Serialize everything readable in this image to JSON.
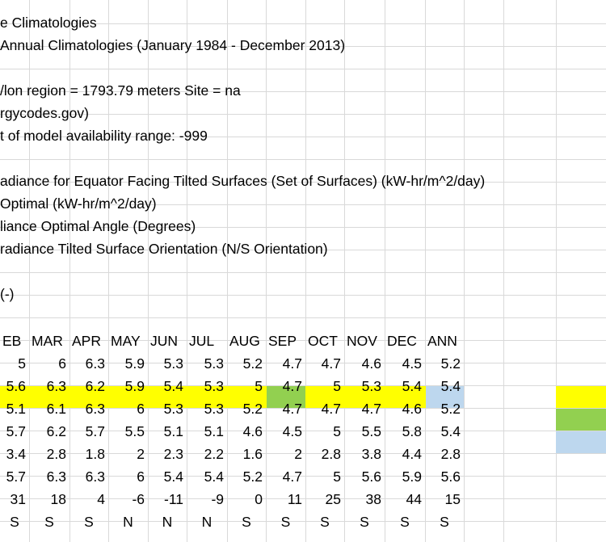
{
  "colors": {
    "highlight_yellow": "#ffff00",
    "highlight_green": "#92d050",
    "highlight_blue": "#bdd7ee",
    "gridline": "#d9d9d9"
  },
  "text_lines": [
    "e Climatologies",
    " Annual Climatologies (January 1984 - December 2013)",
    "",
    "/lon region = 1793.79 meters   Site = na",
    "rgycodes.gov)",
    "t of model availability range: -999",
    "",
    "adiance for Equator Facing Tilted Surfaces (Set of Surfaces) (kW-hr/m^2/day)",
    " Optimal (kW-hr/m^2/day)",
    "liance Optimal Angle (Degrees)",
    "radiance Tilted Surface Orientation (N/S Orientation)",
    "",
    " (-)",
    ""
  ],
  "table": {
    "headers": [
      "EB",
      "MAR",
      "APR",
      "MAY",
      "JUN",
      "JUL",
      "AUG",
      "SEP",
      "OCT",
      "NOV",
      "DEC",
      "ANN"
    ],
    "rows": [
      [
        "5",
        "6",
        "6.3",
        "5.9",
        "5.3",
        "5.3",
        "5.2",
        "4.7",
        "4.7",
        "4.6",
        "4.5",
        "5.2"
      ],
      [
        "5.6",
        "6.3",
        "6.2",
        "5.9",
        "5.4",
        "5.3",
        "5",
        "4.7",
        "5",
        "5.3",
        "5.4",
        "5.4"
      ],
      [
        "5.1",
        "6.1",
        "6.3",
        "6",
        "5.3",
        "5.3",
        "5.2",
        "4.7",
        "4.7",
        "4.7",
        "4.6",
        "5.2"
      ],
      [
        "5.7",
        "6.2",
        "5.7",
        "5.5",
        "5.1",
        "5.1",
        "4.6",
        "4.5",
        "5",
        "5.5",
        "5.8",
        "5.4"
      ],
      [
        "3.4",
        "2.8",
        "1.8",
        "2",
        "2.3",
        "2.2",
        "1.6",
        "2",
        "2.8",
        "3.8",
        "4.4",
        "2.8"
      ],
      [
        "5.7",
        "6.3",
        "6.3",
        "6",
        "5.4",
        "5.4",
        "5.2",
        "4.7",
        "5",
        "5.6",
        "5.9",
        "5.6"
      ],
      [
        "31",
        "18",
        "4",
        "-6",
        "-11",
        "-9",
        "0",
        "11",
        "25",
        "38",
        "44",
        "15"
      ],
      [
        "S",
        "S",
        "S",
        "N",
        "N",
        "N",
        "S",
        "S",
        "S",
        "S",
        "S",
        "S"
      ]
    ]
  }
}
